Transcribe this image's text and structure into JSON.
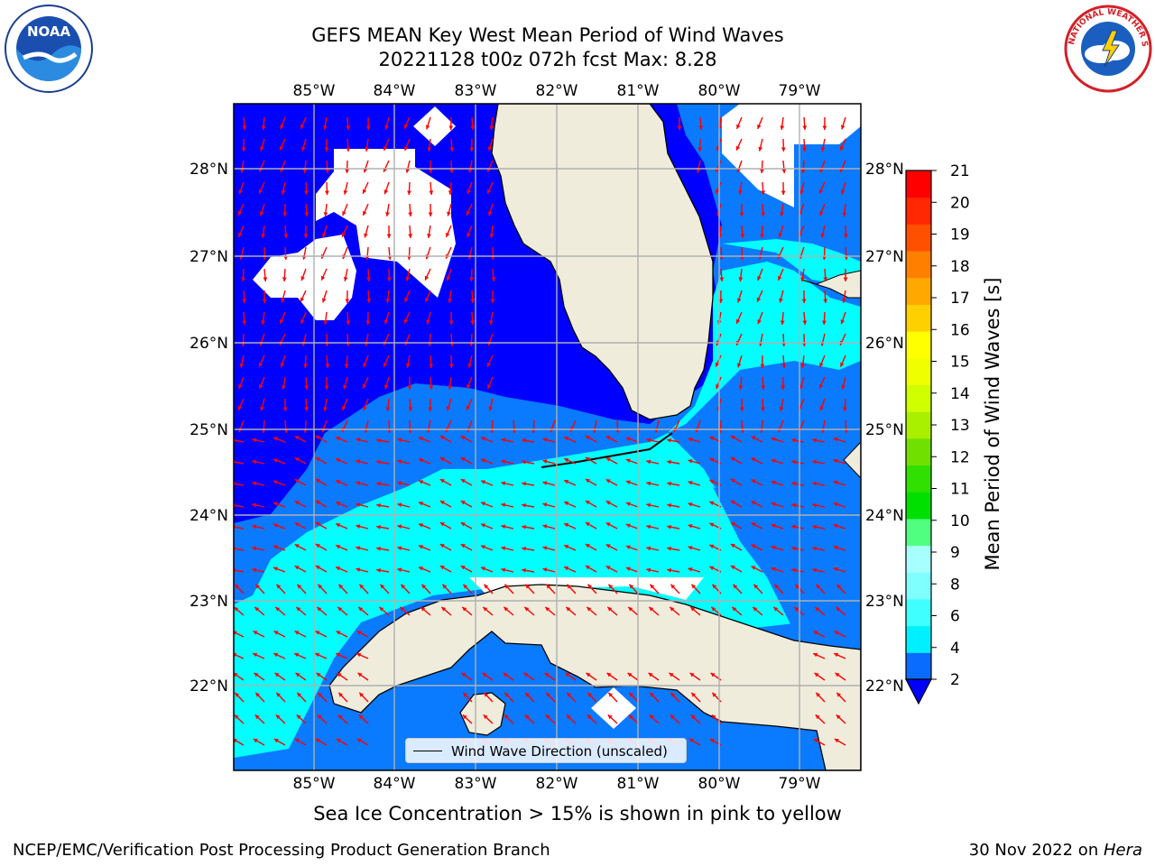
{
  "title": {
    "line1": "GEFS MEAN Key West Mean Period of Wind Waves",
    "line2": "20221128 t00z 072h fcst   Max: 8.28"
  },
  "map": {
    "lon_ticks": [
      "85°W",
      "84°W",
      "83°W",
      "82°W",
      "81°W",
      "80°W",
      "79°W"
    ],
    "lat_ticks": [
      "28°N",
      "27°N",
      "26°N",
      "25°N",
      "24°N",
      "23°N",
      "22°N"
    ],
    "legend_label": "Wind Wave Direction (unscaled)",
    "colors": {
      "ocean_dark": "#0000ff",
      "ocean_mid": "#0a7aff",
      "ocean_cyan": "#00ffff",
      "land": "#efecdc",
      "arrow": "#ff0000",
      "grid": "#b0b0b0"
    }
  },
  "colorbar": {
    "label": "Mean Period of Wind Waves [s]",
    "tick_labels": [
      "21",
      "20",
      "19",
      "18",
      "17",
      "16",
      "15",
      "14",
      "13",
      "12",
      "11",
      "10",
      "9",
      "8",
      "6",
      "4",
      "2"
    ],
    "colors": [
      "#0a6cff",
      "#00f0ff",
      "#40ffff",
      "#80ffff",
      "#a8ffff",
      "#50ff80",
      "#00e000",
      "#30e000",
      "#70e000",
      "#a8f000",
      "#d0ff00",
      "#f0ff00",
      "#ffff00",
      "#ffd000",
      "#ffa800",
      "#ff8000",
      "#ff5000",
      "#ff2800",
      "#ff0000"
    ]
  },
  "footer": {
    "note": "Sea Ice Concentration > 15% is shown in pink to yellow",
    "left": "NCEP/EMC/Verification Post Processing Product Generation Branch",
    "date": "30 Nov 2022 on ",
    "host": "Hera"
  },
  "logos": {
    "noaa_text": "NOAA",
    "nws_text": "NATIONAL WEATHER SERVICE"
  }
}
